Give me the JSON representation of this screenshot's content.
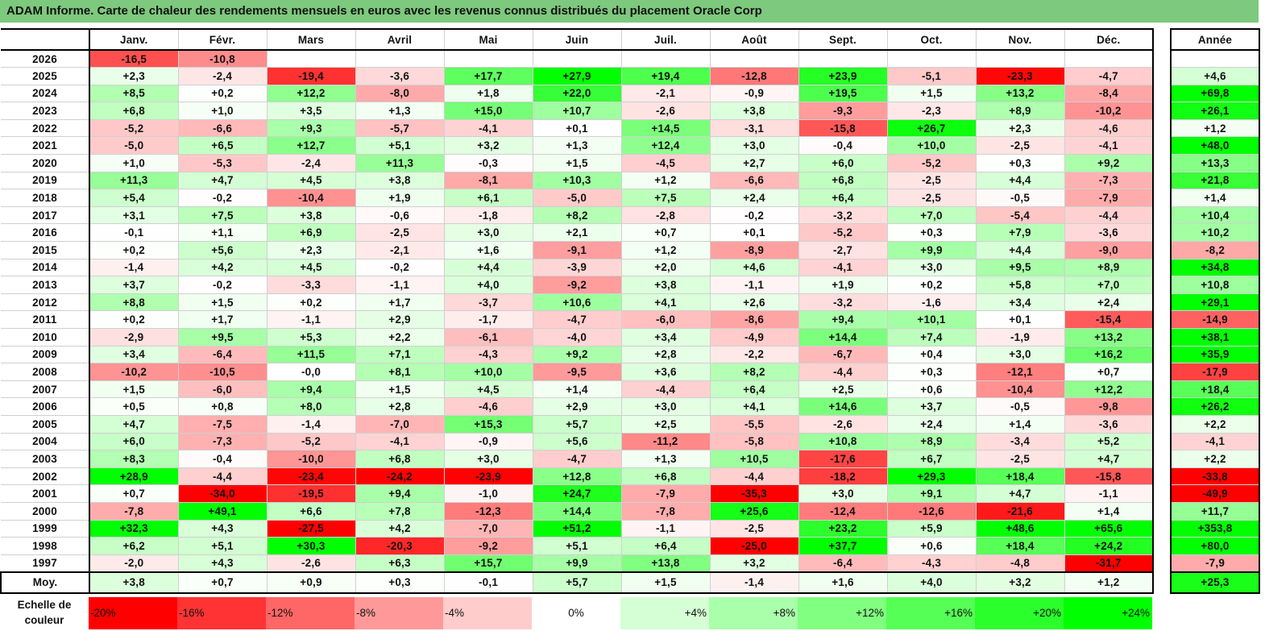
{
  "title": "ADAM Informe. Carte de chaleur des rendements mensuels en euros avec les revenus connus distribués du placement Oracle Corp",
  "chart_data": {
    "type": "heatmap",
    "title": "ADAM Informe. Carte de chaleur des rendements mensuels en euros avec les revenus connus distribués du placement Oracle Corp",
    "months": [
      "Janv.",
      "Févr.",
      "Mars",
      "Avril",
      "Mai",
      "Juin",
      "Juil.",
      "Août",
      "Sept.",
      "Oct.",
      "Nov.",
      "Déc."
    ],
    "annual_label": "Année",
    "rows": [
      {
        "year": "2026",
        "values": [
          "-16,5",
          "-10,8",
          "",
          "",
          "",
          "",
          "",
          "",
          "",
          "",
          "",
          ""
        ],
        "annual": ""
      },
      {
        "year": "2025",
        "values": [
          "+2,3",
          "-2,4",
          "-19,4",
          "-3,6",
          "+17,7",
          "+27,9",
          "+19,4",
          "-12,8",
          "+23,9",
          "-5,1",
          "-23,3",
          "-4,7"
        ],
        "annual": "+4,6"
      },
      {
        "year": "2024",
        "values": [
          "+8,5",
          "+0,2",
          "+12,2",
          "-8,0",
          "+1,8",
          "+22,0",
          "-2,1",
          "-0,9",
          "+19,5",
          "+1,5",
          "+13,2",
          "-8,4"
        ],
        "annual": "+69,8"
      },
      {
        "year": "2023",
        "values": [
          "+6,8",
          "+1,0",
          "+3,5",
          "+1,3",
          "+15,0",
          "+10,7",
          "-2,6",
          "+3,8",
          "-9,3",
          "-2,3",
          "+8,9",
          "-10,2"
        ],
        "annual": "+26,1"
      },
      {
        "year": "2022",
        "values": [
          "-5,2",
          "-6,6",
          "+9,3",
          "-5,7",
          "-4,1",
          "+0,1",
          "+14,5",
          "-3,1",
          "-15,8",
          "+26,7",
          "+2,3",
          "-4,6"
        ],
        "annual": "+1,2"
      },
      {
        "year": "2021",
        "values": [
          "-5,0",
          "+6,5",
          "+12,7",
          "+5,1",
          "+3,2",
          "+1,3",
          "+12,4",
          "+3,0",
          "-0,4",
          "+10,0",
          "-2,5",
          "-4,1"
        ],
        "annual": "+48,0"
      },
      {
        "year": "2020",
        "values": [
          "+1,0",
          "-5,3",
          "-2,4",
          "+11,3",
          "-0,3",
          "+1,5",
          "-4,5",
          "+2,7",
          "+6,0",
          "-5,2",
          "+0,3",
          "+9,2"
        ],
        "annual": "+13,3"
      },
      {
        "year": "2019",
        "values": [
          "+11,3",
          "+4,7",
          "+4,5",
          "+3,8",
          "-8,1",
          "+10,3",
          "+1,2",
          "-6,6",
          "+6,8",
          "-2,5",
          "+4,4",
          "-7,3"
        ],
        "annual": "+21,8"
      },
      {
        "year": "2018",
        "values": [
          "+5,4",
          "-0,2",
          "-10,4",
          "+1,9",
          "+6,1",
          "-5,0",
          "+7,5",
          "+2,4",
          "+6,4",
          "-2,5",
          "-0,5",
          "-7,9"
        ],
        "annual": "+1,4"
      },
      {
        "year": "2017",
        "values": [
          "+3,1",
          "+7,5",
          "+3,8",
          "-0,6",
          "-1,8",
          "+8,2",
          "-2,8",
          "-0,2",
          "-3,2",
          "+7,0",
          "-5,4",
          "-4,4"
        ],
        "annual": "+10,4"
      },
      {
        "year": "2016",
        "values": [
          "-0,1",
          "+1,1",
          "+6,9",
          "-2,5",
          "+3,0",
          "+2,1",
          "+0,7",
          "+0,1",
          "-5,2",
          "+0,3",
          "+7,9",
          "-3,6"
        ],
        "annual": "+10,2"
      },
      {
        "year": "2015",
        "values": [
          "+0,2",
          "+5,6",
          "+2,3",
          "-2,1",
          "+1,6",
          "-9,1",
          "+1,2",
          "-8,9",
          "-2,7",
          "+9,9",
          "+4,4",
          "-9,0"
        ],
        "annual": "-8,2"
      },
      {
        "year": "2014",
        "values": [
          "-1,4",
          "+4,2",
          "+4,5",
          "-0,2",
          "+4,4",
          "-3,9",
          "+2,0",
          "+4,6",
          "-4,1",
          "+3,0",
          "+9,5",
          "+8,9"
        ],
        "annual": "+34,8"
      },
      {
        "year": "2013",
        "values": [
          "+3,7",
          "-0,2",
          "-3,3",
          "-1,1",
          "+4,0",
          "-9,2",
          "+3,8",
          "-1,1",
          "+1,9",
          "+0,2",
          "+5,8",
          "+7,0"
        ],
        "annual": "+10,8"
      },
      {
        "year": "2012",
        "values": [
          "+8,8",
          "+1,5",
          "+0,2",
          "+1,7",
          "-3,7",
          "+10,6",
          "+4,1",
          "+2,6",
          "-3,2",
          "-1,6",
          "+3,4",
          "+2,4"
        ],
        "annual": "+29,1"
      },
      {
        "year": "2011",
        "values": [
          "+0,2",
          "+1,7",
          "-1,1",
          "+2,9",
          "-1,7",
          "-4,7",
          "-6,0",
          "-8,6",
          "+9,4",
          "+10,1",
          "+0,1",
          "-15,4"
        ],
        "annual": "-14,9"
      },
      {
        "year": "2010",
        "values": [
          "-2,9",
          "+9,5",
          "+5,3",
          "+2,2",
          "-6,1",
          "-4,0",
          "+3,4",
          "-4,9",
          "+14,4",
          "+7,4",
          "-1,9",
          "+13,2"
        ],
        "annual": "+38,1"
      },
      {
        "year": "2009",
        "values": [
          "+3,4",
          "-6,4",
          "+11,5",
          "+7,1",
          "-4,3",
          "+9,2",
          "+2,8",
          "-2,2",
          "-6,7",
          "+0,4",
          "+3,0",
          "+16,2"
        ],
        "annual": "+35,9"
      },
      {
        "year": "2008",
        "values": [
          "-10,2",
          "-10,5",
          "-0,0",
          "+8,1",
          "+10,0",
          "-9,5",
          "+3,6",
          "+8,2",
          "-4,4",
          "+0,3",
          "-12,1",
          "+0,7"
        ],
        "annual": "-17,9"
      },
      {
        "year": "2007",
        "values": [
          "+1,5",
          "-6,0",
          "+9,4",
          "+1,5",
          "+4,5",
          "+1,4",
          "-4,4",
          "+6,4",
          "+2,5",
          "+0,6",
          "-10,4",
          "+12,2"
        ],
        "annual": "+18,4"
      },
      {
        "year": "2006",
        "values": [
          "+0,5",
          "+0,8",
          "+8,0",
          "+2,8",
          "-4,6",
          "+2,9",
          "+3,0",
          "+4,1",
          "+14,6",
          "+3,7",
          "-0,5",
          "-9,8"
        ],
        "annual": "+26,2"
      },
      {
        "year": "2005",
        "values": [
          "+4,7",
          "-7,5",
          "-1,4",
          "-7,0",
          "+15,3",
          "+5,7",
          "+2,5",
          "-5,5",
          "-2,6",
          "+2,4",
          "+1,4",
          "-3,6"
        ],
        "annual": "+2,2"
      },
      {
        "year": "2004",
        "values": [
          "+6,0",
          "-7,3",
          "-5,2",
          "-4,1",
          "-0,9",
          "+5,6",
          "-11,2",
          "-5,8",
          "+10,8",
          "+8,9",
          "-3,4",
          "+5,2"
        ],
        "annual": "-4,1"
      },
      {
        "year": "2003",
        "values": [
          "+8,3",
          "-0,4",
          "-10,0",
          "+6,8",
          "+3,0",
          "-4,7",
          "+1,3",
          "+10,5",
          "-17,6",
          "+6,7",
          "-2,5",
          "+4,7"
        ],
        "annual": "+2,2"
      },
      {
        "year": "2002",
        "values": [
          "+28,9",
          "-4,4",
          "-23,4",
          "-24,2",
          "-23,9",
          "+12,8",
          "+6,8",
          "-4,4",
          "-18,2",
          "+29,3",
          "+18,4",
          "-15,8"
        ],
        "annual": "-33,8"
      },
      {
        "year": "2001",
        "values": [
          "+0,7",
          "-34,0",
          "-19,5",
          "+9,4",
          "-1,0",
          "+24,7",
          "-7,9",
          "-35,3",
          "+3,0",
          "+9,1",
          "+4,7",
          "-1,1"
        ],
        "annual": "-49,9"
      },
      {
        "year": "2000",
        "values": [
          "-7,8",
          "+49,1",
          "+6,6",
          "+7,8",
          "-12,3",
          "+14,4",
          "-7,8",
          "+25,6",
          "-12,4",
          "-12,6",
          "-21,6",
          "+1,4"
        ],
        "annual": "+11,7"
      },
      {
        "year": "1999",
        "values": [
          "+32,3",
          "+4,3",
          "-27,5",
          "+4,2",
          "-7,0",
          "+51,2",
          "-1,1",
          "-2,5",
          "+23,2",
          "+5,9",
          "+48,6",
          "+65,6"
        ],
        "annual": "+353,8"
      },
      {
        "year": "1998",
        "values": [
          "+6,2",
          "+5,1",
          "+30,3",
          "-20,3",
          "-9,2",
          "+5,1",
          "+6,4",
          "-25,0",
          "+37,7",
          "+0,6",
          "+18,4",
          "+24,2"
        ],
        "annual": "+80,0"
      },
      {
        "year": "1997",
        "values": [
          "-2,0",
          "+4,3",
          "-2,6",
          "+6,3",
          "+15,7",
          "+9,9",
          "+13,8",
          "+3,2",
          "-6,4",
          "-4,3",
          "-4,8",
          "-31,7"
        ],
        "annual": "-7,9"
      }
    ],
    "average": {
      "label": "Moy.",
      "values": [
        "+3,8",
        "+0,7",
        "+0,9",
        "+0,3",
        "-0,1",
        "+5,7",
        "+1,5",
        "-1,4",
        "+1,6",
        "+4,0",
        "+3,2",
        "+1,2"
      ],
      "annual": "+25,3"
    },
    "color_scale": {
      "label": "Echelle de couleur",
      "steps": [
        "-20%",
        "-16%",
        "-12%",
        "-8%",
        "-4%",
        "0%",
        "+4%",
        "+8%",
        "+12%",
        "+16%",
        "+20%",
        "+24%"
      ],
      "negative_color": "#ff0000",
      "neutral_color": "#ffffff",
      "positive_color": "#00ff00"
    }
  }
}
